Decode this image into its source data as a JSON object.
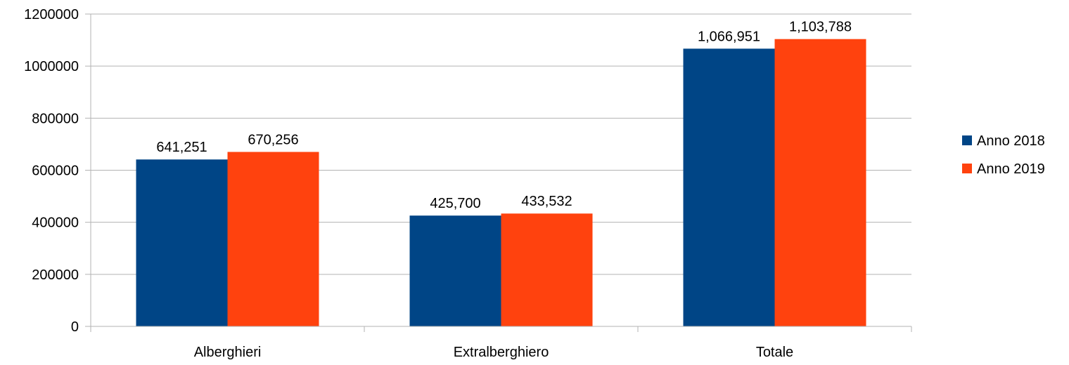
{
  "chart_data": {
    "type": "bar",
    "title": "",
    "xlabel": "",
    "ylabel": "",
    "categories": [
      "Alberghieri",
      "Extralberghiero",
      "Totale"
    ],
    "series": [
      {
        "name": "Anno 2018",
        "color": "#004586",
        "values": [
          641251,
          425700,
          1066951
        ],
        "labels": [
          "641,251",
          "425,700",
          "1,066,951"
        ]
      },
      {
        "name": "Anno 2019",
        "color": "#ff420e",
        "values": [
          670256,
          433532,
          1103788
        ],
        "labels": [
          "670,256",
          "433,532",
          "1,103,788"
        ]
      }
    ],
    "ylim": [
      0,
      1200000
    ],
    "yticks": [
      "0",
      "200000",
      "400000",
      "600000",
      "800000",
      "1000000",
      "1200000"
    ],
    "grid": true,
    "legend_position": "right"
  }
}
